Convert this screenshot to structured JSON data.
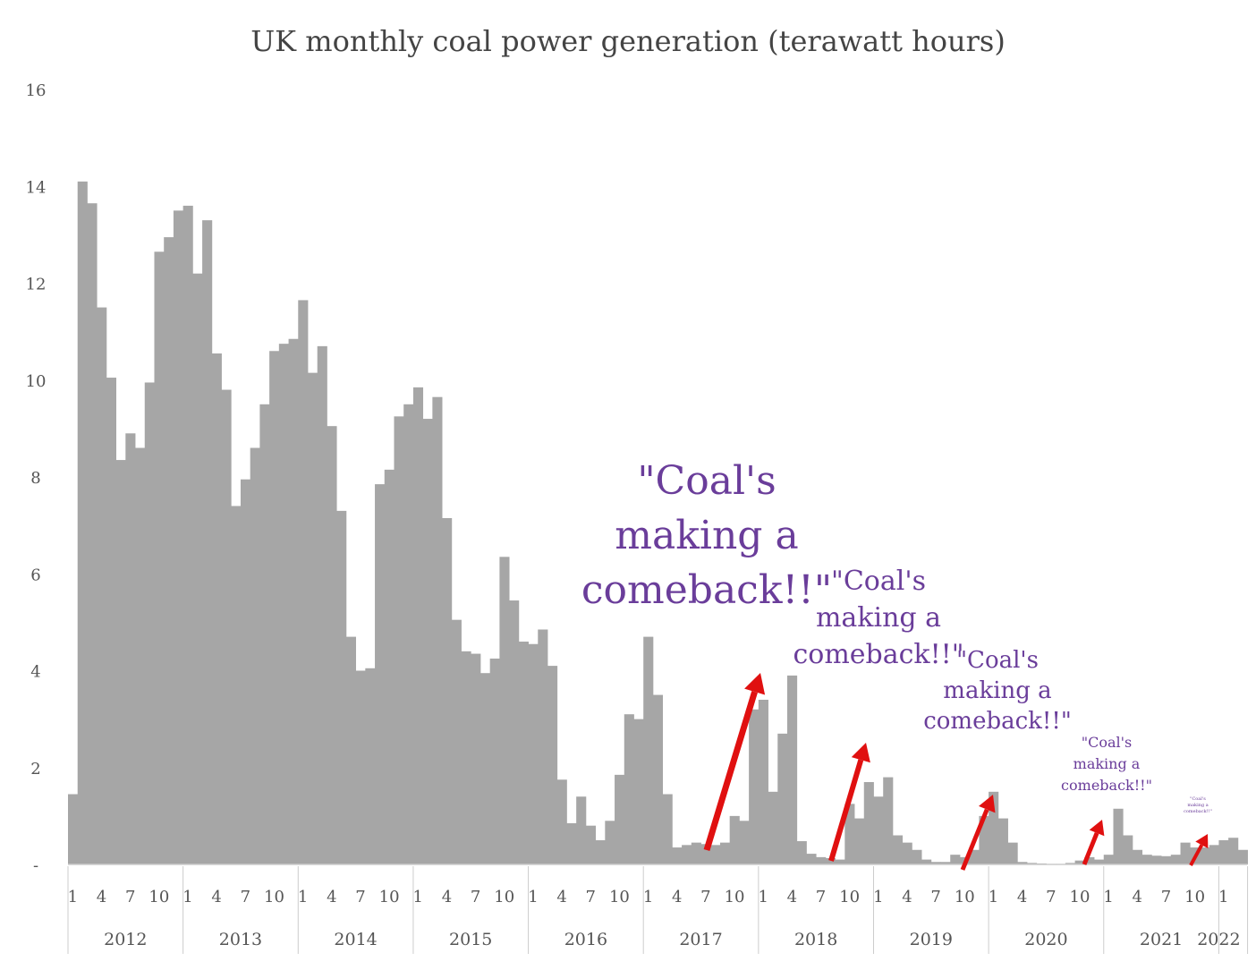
{
  "chart_data": {
    "type": "bar",
    "title": "UK monthly coal power generation (terawatt hours)",
    "xlabel": "",
    "ylabel": "",
    "ylim": [
      0,
      16
    ],
    "y_ticks": [
      "-",
      "2",
      "4",
      "6",
      "8",
      "10",
      "12",
      "14",
      "16"
    ],
    "grid": false,
    "x_month_tick_labels": [
      "1",
      "4",
      "7",
      "10"
    ],
    "years": [
      "2012",
      "2013",
      "2014",
      "2015",
      "2016",
      "2017",
      "2018",
      "2019",
      "2020",
      "2021",
      "2022"
    ],
    "start": "2012-01",
    "bar_color": "#a6a6a6",
    "series": [
      {
        "values": [
          1.45,
          14.1,
          13.65,
          11.5,
          10.05,
          8.35,
          8.9,
          8.6,
          9.95,
          12.65,
          12.95,
          13.5,
          13.6,
          12.2,
          13.3,
          10.55,
          9.8,
          7.4,
          7.95,
          8.6,
          9.5,
          10.6,
          10.75,
          10.85,
          11.65,
          10.15,
          10.7,
          9.05,
          7.3,
          4.7,
          4.0,
          4.05,
          7.85,
          8.15,
          9.25,
          9.5,
          9.85,
          9.2,
          9.65,
          7.15,
          5.05,
          4.4,
          4.35,
          3.95,
          4.25,
          6.35,
          5.45,
          4.6,
          4.55,
          4.85,
          4.1,
          1.75,
          0.85,
          1.4,
          0.8,
          0.5,
          0.9,
          1.85,
          3.1,
          3.0,
          4.7,
          3.5,
          1.45,
          0.35,
          0.4,
          0.45,
          0.42,
          0.4,
          0.45,
          1.0,
          0.9,
          3.2,
          3.4,
          1.5,
          2.7,
          3.9,
          0.48,
          0.22,
          0.15,
          0.13,
          0.1,
          1.25,
          0.95,
          1.7,
          1.4,
          1.8,
          0.6,
          0.45,
          0.3,
          0.1,
          0.05,
          0.05,
          0.2,
          0.15,
          0.3,
          1.0,
          1.5,
          0.95,
          0.45,
          0.05,
          0.03,
          0.02,
          0.01,
          0.01,
          0.03,
          0.08,
          0.15,
          0.1,
          0.2,
          1.15,
          0.6,
          0.3,
          0.2,
          0.18,
          0.17,
          0.2,
          0.45,
          0.35,
          0.35,
          0.4,
          0.5,
          0.55,
          0.3
        ]
      }
    ],
    "annotations": [
      {
        "lines": [
          "\"Coal's",
          "making a",
          "comeback!!\""
        ],
        "color": "#6a3d9a"
      },
      {
        "lines": [
          "\"Coal's",
          "making a",
          "comeback!!\""
        ],
        "color": "#6a3d9a"
      },
      {
        "lines": [
          "\"Coal's",
          "making a",
          "comeback!!\""
        ],
        "color": "#6a3d9a"
      },
      {
        "lines": [
          "\"Coal's",
          "making a",
          "comeback!!\""
        ],
        "color": "#6a3d9a"
      },
      {
        "lines": [
          "\"Coal's",
          "making a",
          "comeback!!\""
        ],
        "color": "#6a3d9a"
      }
    ],
    "arrow_color": "#e01010"
  }
}
